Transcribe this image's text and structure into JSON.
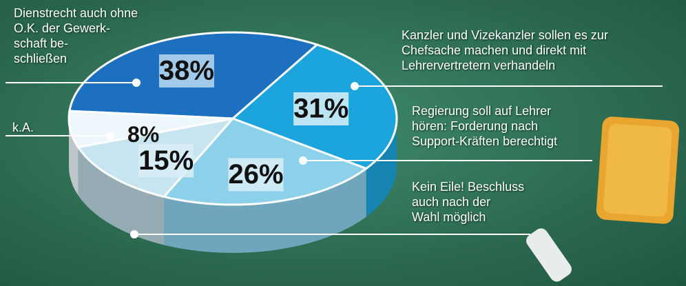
{
  "chart_data": {
    "type": "pie",
    "categories": [
      "Dienstrecht auch ohne\nO.K. der Gewerk-\nschaft be-\nschließen",
      "Kanzler und Vizekanzler sollen es zur\nChefsache machen und direkt mit\nLehrervertretern verhandeln",
      "Regierung soll auf Lehrer\nhören: Forderung nach\nSupport-Kräften berechtigt",
      "Kein Eile! Beschluss\nauch nach der\nWahl möglich",
      "k.A."
    ],
    "values": [
      38,
      31,
      26,
      15,
      8
    ],
    "value_labels": [
      "38%",
      "31%",
      "26%",
      "15%",
      "8%"
    ],
    "colors": [
      "#1d6fc0",
      "#1ca5dd",
      "#8cd0ea",
      "#c6e5f0",
      "#eef7fb"
    ]
  }
}
